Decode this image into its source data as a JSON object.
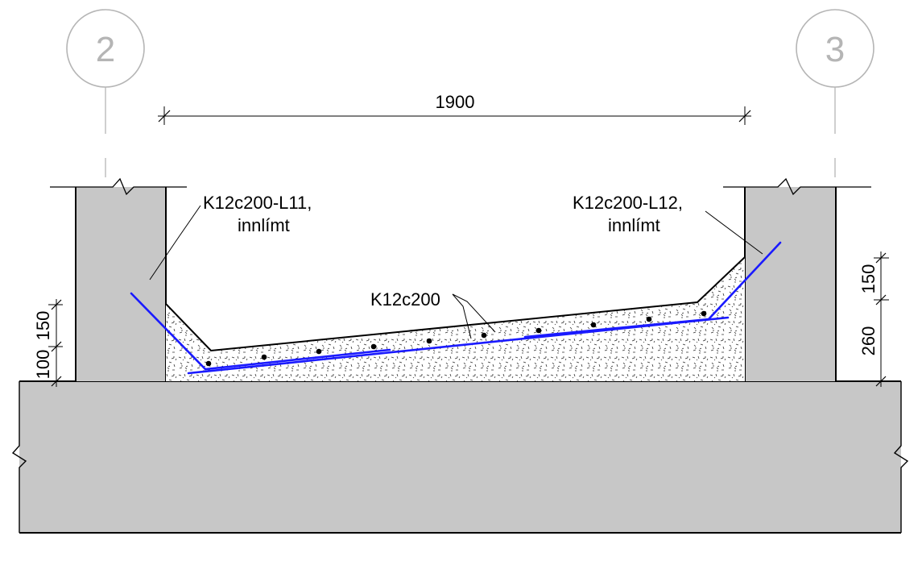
{
  "grid_markers": {
    "left": "2",
    "right": "3"
  },
  "dimensions": {
    "span": "1900",
    "left_lower": "100",
    "left_upper": "150",
    "right_lower": "260",
    "right_upper": "150"
  },
  "labels": {
    "left_bar_line1": "K12c200-L11,",
    "left_bar_line2": "innlímt",
    "right_bar_line1": "K12c200-L12,",
    "right_bar_line2": "innlímt",
    "middle_bar": "K12c200"
  },
  "colors": {
    "concrete_fill": "#c7c7c7",
    "rebar": "#1a1aff",
    "grid_marker": "#b5b5b5"
  }
}
